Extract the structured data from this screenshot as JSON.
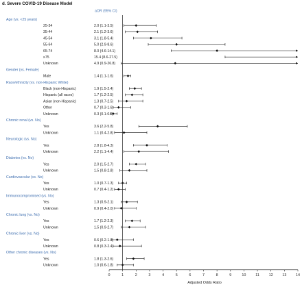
{
  "title": "d. Severe COVID-19 Disease Model",
  "chart_data": {
    "type": "forest",
    "estimate_header": "aOR (95% CI)",
    "xlabel": "Adjusted Odds Ratio",
    "xlim": [
      0,
      14
    ],
    "xticks": [
      0,
      1,
      2,
      3,
      4,
      5,
      6,
      7,
      8,
      9,
      10,
      11,
      12,
      13,
      14
    ],
    "reference_line": 1,
    "rows": [
      {
        "kind": "category",
        "label": "Age (vs. <25 years)"
      },
      {
        "kind": "item",
        "label": "25-34",
        "text": "2.0 (1.1-3.5)",
        "or": 2.0,
        "lo": 1.1,
        "hi": 3.5
      },
      {
        "kind": "item",
        "label": "35-44",
        "text": "2.1 (1.2-3.6)",
        "or": 2.1,
        "lo": 1.2,
        "hi": 3.6
      },
      {
        "kind": "item",
        "label": "45-54",
        "text": "3.1 (1.8-5.4)",
        "or": 3.1,
        "lo": 1.8,
        "hi": 5.4
      },
      {
        "kind": "item",
        "label": "55-64",
        "text": "5.0 (2.9-8.6)",
        "or": 5.0,
        "lo": 2.9,
        "hi": 8.6
      },
      {
        "kind": "item",
        "label": "65-74",
        "text": "8.0 (4.6-14.1)",
        "or": 8.0,
        "lo": 4.6,
        "hi": 14.1
      },
      {
        "kind": "item",
        "label": "≥75",
        "text": "15.4 (8.6-27.5)",
        "or": 15.4,
        "lo": 8.6,
        "hi": 27.5
      },
      {
        "kind": "item",
        "label": "Unknown",
        "text": "4.9 (0.9-26.8)",
        "or": 4.9,
        "lo": 0.9,
        "hi": 26.8
      },
      {
        "kind": "category",
        "label": "Gender (vs. Female)"
      },
      {
        "kind": "item",
        "label": "Male",
        "text": "1.4 (1.1-1.6)",
        "or": 1.4,
        "lo": 1.1,
        "hi": 1.6
      },
      {
        "kind": "category",
        "label": "Race/ethnicity (vs. non-Hispanic White)"
      },
      {
        "kind": "item",
        "label": "Black (non-Hispanic)",
        "text": "1.9 (1.5-2.4)",
        "or": 1.9,
        "lo": 1.5,
        "hi": 2.4
      },
      {
        "kind": "item",
        "label": "Hispanic (all races)",
        "text": "1.7 (1.2-2.5)",
        "or": 1.7,
        "lo": 1.2,
        "hi": 2.5
      },
      {
        "kind": "item",
        "label": "Asian (non-Hispanic)",
        "text": "1.3 (0.7-2.5)",
        "or": 1.3,
        "lo": 0.7,
        "hi": 2.5
      },
      {
        "kind": "item",
        "label": "Other",
        "text": "0.7 (0.3-1.6)",
        "or": 0.7,
        "lo": 0.3,
        "hi": 1.6
      },
      {
        "kind": "item",
        "label": "Unknown",
        "text": "0.3 (0.1-0.6)",
        "or": 0.3,
        "lo": 0.1,
        "hi": 0.6
      },
      {
        "kind": "category",
        "label": "Chronic renal (vs. No)"
      },
      {
        "kind": "item",
        "label": "Yes",
        "text": "3.6 (2.2-5.8)",
        "or": 3.6,
        "lo": 2.2,
        "hi": 5.8
      },
      {
        "kind": "item",
        "label": "Unknown",
        "text": "1.1 (0.4-2.8)",
        "or": 1.1,
        "lo": 0.4,
        "hi": 2.8
      },
      {
        "kind": "category",
        "label": "Neurologic (vs. No)"
      },
      {
        "kind": "item",
        "label": "Yes",
        "text": "2.8 (1.8-4.3)",
        "or": 2.8,
        "lo": 1.8,
        "hi": 4.3
      },
      {
        "kind": "item",
        "label": "Unknown",
        "text": "2.2 (1.1-4.4)",
        "or": 2.2,
        "lo": 1.1,
        "hi": 4.4
      },
      {
        "kind": "category",
        "label": "Diabetes (vs. No)"
      },
      {
        "kind": "item",
        "label": "Yes",
        "text": "2.0 (1.5-2.7)",
        "or": 2.0,
        "lo": 1.5,
        "hi": 2.7
      },
      {
        "kind": "item",
        "label": "Unknown",
        "text": "1.5 (0.8-2.8)",
        "or": 1.5,
        "lo": 0.8,
        "hi": 2.8
      },
      {
        "kind": "category",
        "label": "Cardiovascular (vs. No)"
      },
      {
        "kind": "item",
        "label": "Yes",
        "text": "1.0 (0.7-1.3)",
        "or": 1.0,
        "lo": 0.7,
        "hi": 1.3
      },
      {
        "kind": "item",
        "label": "Unknown",
        "text": "0.7 (0.4-1.2)",
        "or": 0.7,
        "lo": 0.4,
        "hi": 1.2
      },
      {
        "kind": "category",
        "label": "Immunocompromised (vs. No)"
      },
      {
        "kind": "item",
        "label": "Yes",
        "text": "1.3 (0.9-2.1)",
        "or": 1.3,
        "lo": 0.9,
        "hi": 2.1
      },
      {
        "kind": "item",
        "label": "Unknown",
        "text": "0.9 (0.4-2.0)",
        "or": 0.9,
        "lo": 0.4,
        "hi": 2.0
      },
      {
        "kind": "category",
        "label": "Chronic lung (vs. No)"
      },
      {
        "kind": "item",
        "label": "Yes",
        "text": "1.7 (1.2-2.3)",
        "or": 1.7,
        "lo": 1.2,
        "hi": 2.3
      },
      {
        "kind": "item",
        "label": "Unknown",
        "text": "1.5 (0.9-2.7)",
        "or": 1.5,
        "lo": 0.9,
        "hi": 2.7
      },
      {
        "kind": "category",
        "label": "Chronic liver (vs. No)"
      },
      {
        "kind": "item",
        "label": "Yes",
        "text": "0.6 (0.2-1.8)",
        "or": 0.6,
        "lo": 0.2,
        "hi": 1.8
      },
      {
        "kind": "item",
        "label": "Unknown",
        "text": "0.8 (0.3-2.4)",
        "or": 0.8,
        "lo": 0.3,
        "hi": 2.4
      },
      {
        "kind": "category",
        "label": "Other chronic diseases (vs. No)"
      },
      {
        "kind": "item",
        "label": "Yes",
        "text": "1.8 (1.3-2.6)",
        "or": 1.8,
        "lo": 1.3,
        "hi": 2.6
      },
      {
        "kind": "item",
        "label": "Unknown",
        "text": "1.0 (0.6-1.8)",
        "or": 1.0,
        "lo": 0.6,
        "hi": 1.8
      }
    ],
    "colors": {
      "category": "#3f6fb0",
      "header": "#4a78b4",
      "marks": "#111111"
    }
  }
}
